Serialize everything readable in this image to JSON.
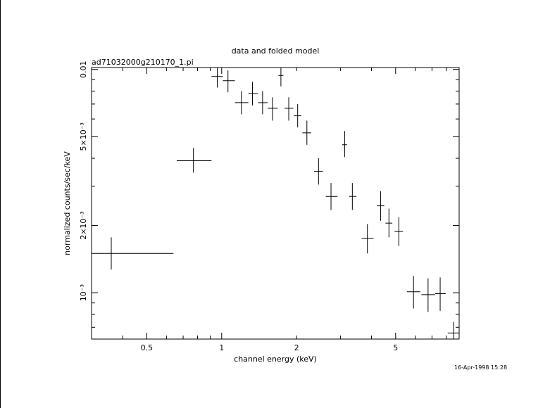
{
  "chart_data": {
    "type": "scatter",
    "style": "error-bar crosses",
    "title": "data and folded model",
    "subtitle": "ad71032000g210170_1.pi",
    "xlabel": "channel energy (keV)",
    "ylabel": "normalized counts/sec/keV",
    "x_scale": "log",
    "y_scale": "log",
    "xlim": [
      0.3,
      9.0
    ],
    "ylim": [
      0.00062,
      0.0102
    ],
    "x_tick_labels": [
      {
        "value": 0.5,
        "label": "0.5"
      },
      {
        "value": 1,
        "label": "1"
      },
      {
        "value": 2,
        "label": "2"
      },
      {
        "value": 5,
        "label": "5"
      }
    ],
    "y_tick_labels": [
      {
        "value": 0.001,
        "label": "10⁻³"
      },
      {
        "value": 0.002,
        "label": "2×10⁻³"
      },
      {
        "value": 0.005,
        "label": "5×10⁻³"
      },
      {
        "value": 0.01,
        "label": "0.01"
      }
    ],
    "grid": false,
    "points": [
      {
        "x": 0.36,
        "x_lo": 0.3,
        "x_hi": 0.64,
        "y": 0.0015,
        "y_lo": 0.00127,
        "y_hi": 0.00177
      },
      {
        "x": 0.77,
        "x_lo": 0.66,
        "x_hi": 0.91,
        "y": 0.0039,
        "y_lo": 0.00345,
        "y_hi": 0.00445
      },
      {
        "x": 0.96,
        "x_lo": 0.91,
        "x_hi": 1.01,
        "y": 0.0093,
        "y_lo": 0.0083,
        "y_hi": 0.0102
      },
      {
        "x": 1.06,
        "x_lo": 1.01,
        "x_hi": 1.13,
        "y": 0.0089,
        "y_lo": 0.0079,
        "y_hi": 0.0099
      },
      {
        "x": 1.2,
        "x_lo": 1.13,
        "x_hi": 1.28,
        "y": 0.0071,
        "y_lo": 0.0063,
        "y_hi": 0.008
      },
      {
        "x": 1.33,
        "x_lo": 1.28,
        "x_hi": 1.4,
        "y": 0.0078,
        "y_lo": 0.0069,
        "y_hi": 0.0088
      },
      {
        "x": 1.46,
        "x_lo": 1.4,
        "x_hi": 1.53,
        "y": 0.0071,
        "y_lo": 0.0063,
        "y_hi": 0.008
      },
      {
        "x": 1.6,
        "x_lo": 1.53,
        "x_hi": 1.68,
        "y": 0.0067,
        "y_lo": 0.0059,
        "y_hi": 0.0075
      },
      {
        "x": 1.73,
        "x_lo": 1.69,
        "x_hi": 1.77,
        "y": 0.0094,
        "y_lo": 0.0084,
        "y_hi": 0.0102
      },
      {
        "x": 1.86,
        "x_lo": 1.79,
        "x_hi": 1.94,
        "y": 0.0067,
        "y_lo": 0.0059,
        "y_hi": 0.0075
      },
      {
        "x": 2.02,
        "x_lo": 1.95,
        "x_hi": 2.09,
        "y": 0.0062,
        "y_lo": 0.0055,
        "y_hi": 0.007
      },
      {
        "x": 2.2,
        "x_lo": 2.11,
        "x_hi": 2.29,
        "y": 0.0052,
        "y_lo": 0.0046,
        "y_hi": 0.0059
      },
      {
        "x": 2.45,
        "x_lo": 2.35,
        "x_hi": 2.55,
        "y": 0.0035,
        "y_lo": 0.00305,
        "y_hi": 0.004
      },
      {
        "x": 2.75,
        "x_lo": 2.62,
        "x_hi": 2.92,
        "y": 0.0027,
        "y_lo": 0.00235,
        "y_hi": 0.0031
      },
      {
        "x": 3.12,
        "x_lo": 3.05,
        "x_hi": 3.19,
        "y": 0.0046,
        "y_lo": 0.00405,
        "y_hi": 0.0053
      },
      {
        "x": 3.35,
        "x_lo": 3.25,
        "x_hi": 3.48,
        "y": 0.0027,
        "y_lo": 0.00235,
        "y_hi": 0.0031
      },
      {
        "x": 3.85,
        "x_lo": 3.65,
        "x_hi": 4.08,
        "y": 0.00175,
        "y_lo": 0.0015,
        "y_hi": 0.00203
      },
      {
        "x": 4.35,
        "x_lo": 4.2,
        "x_hi": 4.5,
        "y": 0.00245,
        "y_lo": 0.0021,
        "y_hi": 0.00285
      },
      {
        "x": 4.7,
        "x_lo": 4.55,
        "x_hi": 4.85,
        "y": 0.00205,
        "y_lo": 0.00177,
        "y_hi": 0.00238
      },
      {
        "x": 5.15,
        "x_lo": 4.95,
        "x_hi": 5.35,
        "y": 0.00188,
        "y_lo": 0.00162,
        "y_hi": 0.00218
      },
      {
        "x": 5.9,
        "x_lo": 5.55,
        "x_hi": 6.28,
        "y": 0.00101,
        "y_lo": 0.00085,
        "y_hi": 0.00119
      },
      {
        "x": 6.75,
        "x_lo": 6.35,
        "x_hi": 7.2,
        "y": 0.00098,
        "y_lo": 0.00082,
        "y_hi": 0.00116
      },
      {
        "x": 7.55,
        "x_lo": 7.2,
        "x_hi": 7.95,
        "y": 0.00099,
        "y_lo": 0.00083,
        "y_hi": 0.00117
      },
      {
        "x": 8.55,
        "x_lo": 8.1,
        "x_hi": 9.0,
        "y": 0.00066,
        "y_lo": 0.00062,
        "y_hi": 0.00074
      }
    ]
  },
  "timestamp": "16-Apr-1998 15:28"
}
